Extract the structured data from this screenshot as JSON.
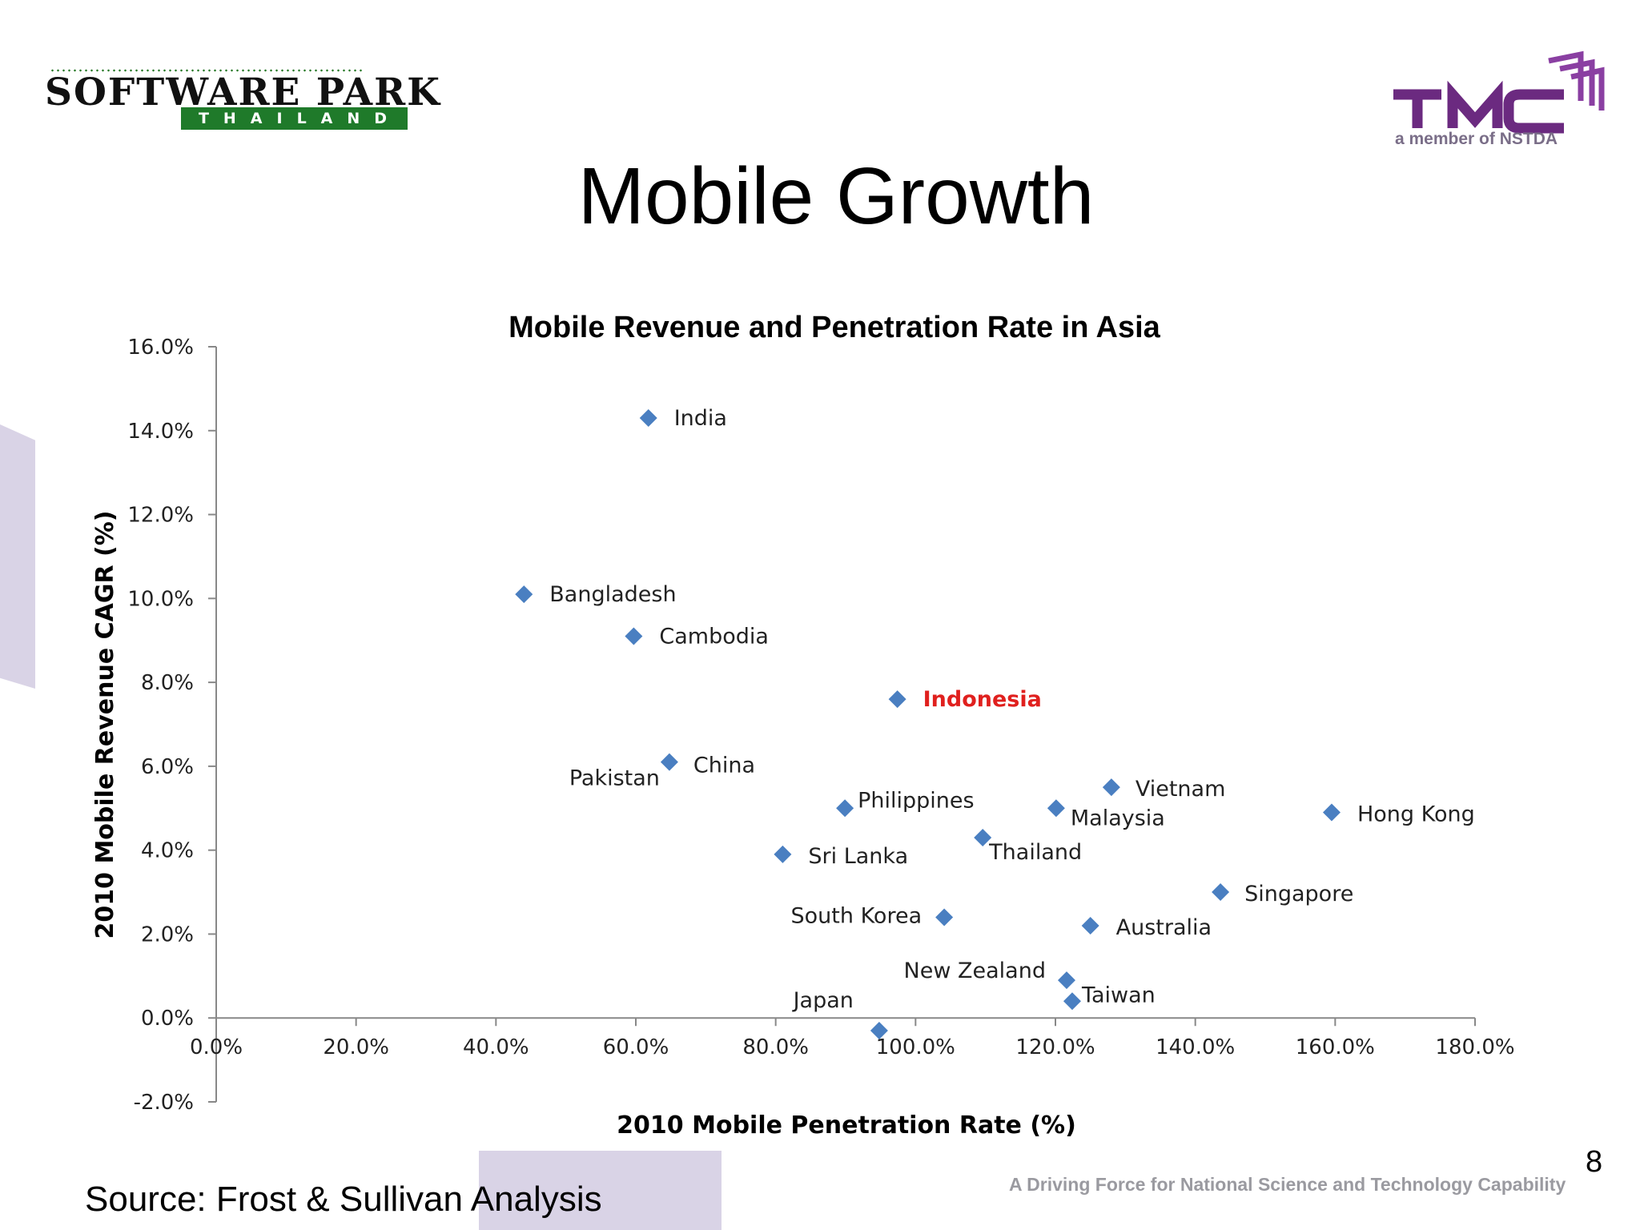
{
  "slide": {
    "title": "Mobile Growth",
    "source": "Source:  Frost & Sullivan Analysis",
    "tagline": "A Driving Force for National Science and Technology Capability",
    "page_number": "8"
  },
  "logos": {
    "software_park": {
      "title": "SOFTWARE PARK",
      "subtitle": "THAILAND",
      "color": "#1f7a2a"
    },
    "tmc": {
      "title": "TMC",
      "subtitle": "a member of NSTDA",
      "color": "#6b2a80"
    }
  },
  "colors": {
    "marker": "#4a7fc1",
    "highlight": "#e0201e",
    "axis": "#888888"
  },
  "chart_data": {
    "type": "scatter",
    "title": "Mobile Revenue and Penetration Rate in Asia",
    "xlabel": "2010 Mobile Penetration Rate (%)",
    "ylabel": "2010 Mobile Revenue CAGR (%)",
    "xlim": [
      0,
      180
    ],
    "ylim": [
      -2,
      16
    ],
    "x_ticks": [
      "0.0%",
      "20.0%",
      "40.0%",
      "60.0%",
      "80.0%",
      "100.0%",
      "120.0%",
      "140.0%",
      "160.0%",
      "180.0%"
    ],
    "y_ticks": [
      "-2.0%",
      "0.0%",
      "2.0%",
      "4.0%",
      "6.0%",
      "8.0%",
      "10.0%",
      "12.0%",
      "14.0%",
      "16.0%"
    ],
    "grid": false,
    "points": [
      {
        "label": "India",
        "x": 61.8,
        "y": 14.3
      },
      {
        "label": "Bangladesh",
        "x": 44.0,
        "y": 10.1
      },
      {
        "label": "Cambodia",
        "x": 59.7,
        "y": 9.1
      },
      {
        "label": "Indonesia",
        "x": 97.4,
        "y": 7.6,
        "highlight": true
      },
      {
        "label": "China",
        "x": 64.8,
        "y": 6.1
      },
      {
        "label": "Pakistan",
        "x": 64.8,
        "y": 6.1
      },
      {
        "label": "Philippines",
        "x": 89.9,
        "y": 5.0
      },
      {
        "label": "Vietnam",
        "x": 128.0,
        "y": 5.5
      },
      {
        "label": "Malaysia",
        "x": 120.1,
        "y": 5.0
      },
      {
        "label": "Hong Kong",
        "x": 159.5,
        "y": 4.9
      },
      {
        "label": "Sri Lanka",
        "x": 81.0,
        "y": 3.9
      },
      {
        "label": "Thailand",
        "x": 109.6,
        "y": 4.3
      },
      {
        "label": "Singapore",
        "x": 143.6,
        "y": 3.0
      },
      {
        "label": "South Korea",
        "x": 104.1,
        "y": 2.4
      },
      {
        "label": "Australia",
        "x": 125.0,
        "y": 2.2
      },
      {
        "label": "New Zealand",
        "x": 121.6,
        "y": 0.9
      },
      {
        "label": "Taiwan",
        "x": 122.4,
        "y": 0.4
      },
      {
        "label": "Japan",
        "x": 94.8,
        "y": -0.3
      }
    ]
  }
}
